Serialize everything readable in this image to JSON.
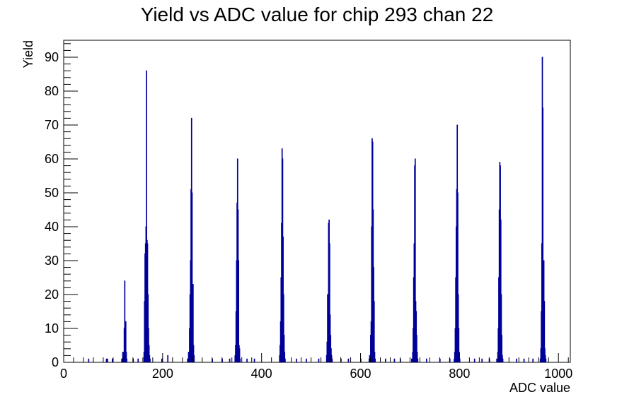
{
  "chart_data": {
    "type": "histogram",
    "title": "Yield vs ADC value for chip 293 chan 22",
    "xlabel": "ADC value",
    "ylabel": "Yield",
    "xlim": [
      0,
      1024
    ],
    "ylim": [
      0,
      95
    ],
    "x_ticks": [
      0,
      200,
      400,
      600,
      800,
      1000
    ],
    "x_tick_labels": [
      "0",
      "200",
      "400",
      "600",
      "800",
      "1000"
    ],
    "y_ticks": [
      0,
      10,
      20,
      30,
      40,
      50,
      60,
      70,
      80,
      90
    ],
    "y_tick_labels": [
      "0",
      "10",
      "20",
      "30",
      "40",
      "50",
      "60",
      "70",
      "80",
      "90"
    ],
    "grid": false,
    "series_color": "#000099",
    "bins": [
      {
        "x": 50,
        "y": 1
      },
      {
        "x": 86,
        "y": 1
      },
      {
        "x": 88,
        "y": 1
      },
      {
        "x": 98,
        "y": 1
      },
      {
        "x": 117,
        "y": 1
      },
      {
        "x": 119,
        "y": 3
      },
      {
        "x": 121,
        "y": 3
      },
      {
        "x": 122,
        "y": 10
      },
      {
        "x": 123,
        "y": 24
      },
      {
        "x": 124,
        "y": 10
      },
      {
        "x": 125,
        "y": 12
      },
      {
        "x": 126,
        "y": 3
      },
      {
        "x": 127,
        "y": 1
      },
      {
        "x": 140,
        "y": 1
      },
      {
        "x": 150,
        "y": 1
      },
      {
        "x": 162,
        "y": 3
      },
      {
        "x": 163,
        "y": 18
      },
      {
        "x": 164,
        "y": 32
      },
      {
        "x": 165,
        "y": 35
      },
      {
        "x": 166,
        "y": 40
      },
      {
        "x": 167,
        "y": 86
      },
      {
        "x": 168,
        "y": 36
      },
      {
        "x": 169,
        "y": 35
      },
      {
        "x": 170,
        "y": 20
      },
      {
        "x": 171,
        "y": 10
      },
      {
        "x": 172,
        "y": 5
      },
      {
        "x": 173,
        "y": 2
      },
      {
        "x": 174,
        "y": 1
      },
      {
        "x": 198,
        "y": 1
      },
      {
        "x": 210,
        "y": 2
      },
      {
        "x": 250,
        "y": 1
      },
      {
        "x": 252,
        "y": 3
      },
      {
        "x": 254,
        "y": 10
      },
      {
        "x": 255,
        "y": 20
      },
      {
        "x": 256,
        "y": 30
      },
      {
        "x": 257,
        "y": 51
      },
      {
        "x": 258,
        "y": 72
      },
      {
        "x": 259,
        "y": 50
      },
      {
        "x": 260,
        "y": 20
      },
      {
        "x": 261,
        "y": 23
      },
      {
        "x": 262,
        "y": 5
      },
      {
        "x": 263,
        "y": 2
      },
      {
        "x": 300,
        "y": 1
      },
      {
        "x": 320,
        "y": 1
      },
      {
        "x": 335,
        "y": 1
      },
      {
        "x": 346,
        "y": 2
      },
      {
        "x": 347,
        "y": 5
      },
      {
        "x": 348,
        "y": 15
      },
      {
        "x": 349,
        "y": 30
      },
      {
        "x": 350,
        "y": 47
      },
      {
        "x": 351,
        "y": 60
      },
      {
        "x": 352,
        "y": 45
      },
      {
        "x": 353,
        "y": 30
      },
      {
        "x": 354,
        "y": 5
      },
      {
        "x": 355,
        "y": 4
      },
      {
        "x": 356,
        "y": 1
      },
      {
        "x": 370,
        "y": 1
      },
      {
        "x": 385,
        "y": 1
      },
      {
        "x": 436,
        "y": 2
      },
      {
        "x": 437,
        "y": 5
      },
      {
        "x": 438,
        "y": 12
      },
      {
        "x": 439,
        "y": 25
      },
      {
        "x": 440,
        "y": 41
      },
      {
        "x": 441,
        "y": 63
      },
      {
        "x": 442,
        "y": 60
      },
      {
        "x": 443,
        "y": 37
      },
      {
        "x": 444,
        "y": 20
      },
      {
        "x": 445,
        "y": 8
      },
      {
        "x": 446,
        "y": 3
      },
      {
        "x": 447,
        "y": 1
      },
      {
        "x": 470,
        "y": 1
      },
      {
        "x": 490,
        "y": 1
      },
      {
        "x": 515,
        "y": 1
      },
      {
        "x": 531,
        "y": 2
      },
      {
        "x": 532,
        "y": 6
      },
      {
        "x": 533,
        "y": 20
      },
      {
        "x": 534,
        "y": 8
      },
      {
        "x": 535,
        "y": 41
      },
      {
        "x": 536,
        "y": 42
      },
      {
        "x": 537,
        "y": 35
      },
      {
        "x": 538,
        "y": 14
      },
      {
        "x": 539,
        "y": 8
      },
      {
        "x": 540,
        "y": 4
      },
      {
        "x": 541,
        "y": 2
      },
      {
        "x": 542,
        "y": 1
      },
      {
        "x": 560,
        "y": 1
      },
      {
        "x": 575,
        "y": 1
      },
      {
        "x": 600,
        "y": 1
      },
      {
        "x": 617,
        "y": 1
      },
      {
        "x": 618,
        "y": 2
      },
      {
        "x": 620,
        "y": 8
      },
      {
        "x": 621,
        "y": 12
      },
      {
        "x": 622,
        "y": 40
      },
      {
        "x": 623,
        "y": 66
      },
      {
        "x": 624,
        "y": 65
      },
      {
        "x": 625,
        "y": 45
      },
      {
        "x": 626,
        "y": 28
      },
      {
        "x": 627,
        "y": 18
      },
      {
        "x": 628,
        "y": 3
      },
      {
        "x": 629,
        "y": 1
      },
      {
        "x": 650,
        "y": 1
      },
      {
        "x": 668,
        "y": 1
      },
      {
        "x": 680,
        "y": 1
      },
      {
        "x": 703,
        "y": 1
      },
      {
        "x": 705,
        "y": 3
      },
      {
        "x": 706,
        "y": 10
      },
      {
        "x": 707,
        "y": 25
      },
      {
        "x": 708,
        "y": 35
      },
      {
        "x": 709,
        "y": 58
      },
      {
        "x": 710,
        "y": 60
      },
      {
        "x": 711,
        "y": 18
      },
      {
        "x": 712,
        "y": 15
      },
      {
        "x": 713,
        "y": 8
      },
      {
        "x": 714,
        "y": 3
      },
      {
        "x": 715,
        "y": 1
      },
      {
        "x": 733,
        "y": 1
      },
      {
        "x": 760,
        "y": 1
      },
      {
        "x": 780,
        "y": 1
      },
      {
        "x": 789,
        "y": 1
      },
      {
        "x": 790,
        "y": 3
      },
      {
        "x": 791,
        "y": 10
      },
      {
        "x": 792,
        "y": 25
      },
      {
        "x": 793,
        "y": 40
      },
      {
        "x": 794,
        "y": 51
      },
      {
        "x": 795,
        "y": 70
      },
      {
        "x": 796,
        "y": 50
      },
      {
        "x": 797,
        "y": 20
      },
      {
        "x": 798,
        "y": 10
      },
      {
        "x": 799,
        "y": 3
      },
      {
        "x": 800,
        "y": 1
      },
      {
        "x": 830,
        "y": 1
      },
      {
        "x": 845,
        "y": 1
      },
      {
        "x": 860,
        "y": 1
      },
      {
        "x": 875,
        "y": 1
      },
      {
        "x": 877,
        "y": 3
      },
      {
        "x": 878,
        "y": 10
      },
      {
        "x": 879,
        "y": 25
      },
      {
        "x": 880,
        "y": 45
      },
      {
        "x": 881,
        "y": 59
      },
      {
        "x": 882,
        "y": 58
      },
      {
        "x": 883,
        "y": 42
      },
      {
        "x": 884,
        "y": 20
      },
      {
        "x": 885,
        "y": 8
      },
      {
        "x": 886,
        "y": 2
      },
      {
        "x": 887,
        "y": 1
      },
      {
        "x": 915,
        "y": 1
      },
      {
        "x": 930,
        "y": 1
      },
      {
        "x": 948,
        "y": 1
      },
      {
        "x": 963,
        "y": 1
      },
      {
        "x": 964,
        "y": 4
      },
      {
        "x": 965,
        "y": 15
      },
      {
        "x": 966,
        "y": 35
      },
      {
        "x": 967,
        "y": 90
      },
      {
        "x": 968,
        "y": 75
      },
      {
        "x": 969,
        "y": 12
      },
      {
        "x": 970,
        "y": 30
      },
      {
        "x": 971,
        "y": 18
      },
      {
        "x": 972,
        "y": 4
      },
      {
        "x": 973,
        "y": 2
      },
      {
        "x": 974,
        "y": 1
      }
    ]
  }
}
